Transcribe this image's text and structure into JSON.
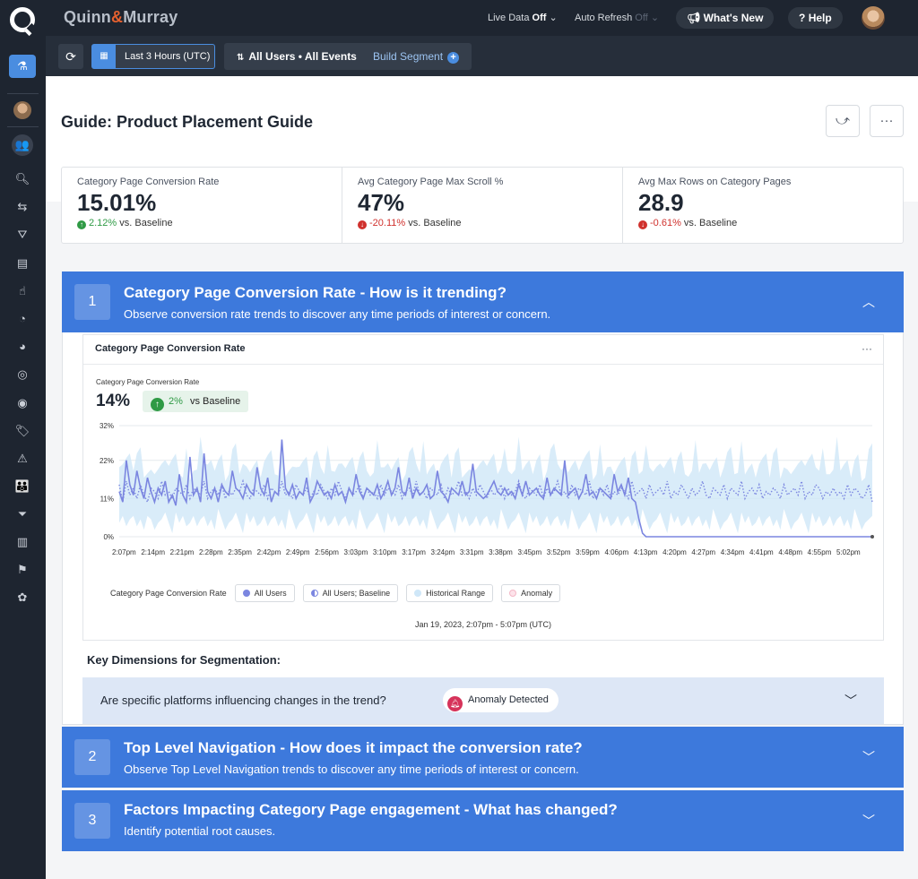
{
  "topbar": {
    "brand_left": "Quinn",
    "brand_amp": "&",
    "brand_right": "Murray",
    "live_data_label": "Live Data",
    "live_data_value": "Off",
    "auto_refresh_label": "Auto Refresh",
    "auto_refresh_value": "Off",
    "whats_new": "What's New",
    "help": "Help"
  },
  "toolbar": {
    "date_range": "Last 3 Hours (UTC)",
    "segment": "All Users • All Events",
    "build_segment": "Build Segment"
  },
  "page": {
    "title": "Guide: Product Placement Guide"
  },
  "kpis": [
    {
      "label": "Category Page Conversion Rate",
      "value": "15.01%",
      "delta": "2.12%",
      "suffix": "vs. Baseline",
      "direction": "up"
    },
    {
      "label": "Avg Category Page Max Scroll %",
      "value": "47%",
      "delta": "-20.11%",
      "suffix": "vs. Baseline",
      "direction": "down"
    },
    {
      "label": "Avg Max Rows on Category Pages",
      "value": "28.9",
      "delta": "-0.61%",
      "suffix": "vs. Baseline",
      "direction": "down"
    }
  ],
  "sections": [
    {
      "num": "1",
      "title": "Category Page Conversion Rate - How is it trending?",
      "subtitle": "Observe conversion rate trends to discover any time periods of interest or concern.",
      "expanded": true
    },
    {
      "num": "2",
      "title": "Top Level Navigation - How does it impact the conversion rate?",
      "subtitle": "Observe Top Level Navigation trends to discover any time periods of interest or concern.",
      "expanded": false
    },
    {
      "num": "3",
      "title": "Factors Impacting Category Page engagement - What has changed?",
      "subtitle": "Identify potential root causes.",
      "expanded": false
    }
  ],
  "chart_card": {
    "header": "Category Page Conversion Rate",
    "metric_label": "Category Page Conversion Rate",
    "metric_value": "14%",
    "badge_value": "2%",
    "badge_suffix": "vs Baseline",
    "date_caption": "Jan 19, 2023, 2:07pm - 5:07pm (UTC)",
    "legend_title": "Category Page Conversion Rate",
    "legend": [
      "All Users",
      "All Users; Baseline",
      "Historical Range",
      "Anomaly"
    ]
  },
  "key_dimensions": {
    "title": "Key Dimensions for Segmentation:",
    "question": "Are specific platforms influencing changes in the trend?",
    "anomaly": "Anomaly Detected"
  },
  "colors": {
    "accent": "#3d79dc",
    "nav_bg": "#1e2530",
    "up": "#2f9a45",
    "down": "#d0312d",
    "series": "#7b86e0",
    "range": "#cfe7f8"
  },
  "chart_data": {
    "type": "line",
    "y_ticks": [
      "0%",
      "11%",
      "22%",
      "32%"
    ],
    "ylim": [
      0,
      32
    ],
    "x_tick_labels": [
      "2:07pm",
      "2:14pm",
      "2:21pm",
      "2:28pm",
      "2:35pm",
      "2:42pm",
      "2:49pm",
      "2:56pm",
      "3:03pm",
      "3:10pm",
      "3:17pm",
      "3:24pm",
      "3:31pm",
      "3:38pm",
      "3:45pm",
      "3:52pm",
      "3:59pm",
      "4:06pm",
      "4:13pm",
      "4:20pm",
      "4:27pm",
      "4:34pm",
      "4:41pm",
      "4:48pm",
      "4:55pm",
      "5:02pm"
    ],
    "series": [
      {
        "name": "All Users",
        "values": [
          13,
          10,
          22,
          15,
          12,
          19,
          14,
          11,
          17,
          13,
          10,
          14,
          12,
          16,
          10,
          12,
          9,
          18,
          12,
          10,
          23,
          12,
          14,
          10,
          24,
          13,
          11,
          14,
          10,
          15,
          13,
          12,
          19,
          14,
          13,
          11,
          15,
          13,
          12,
          20,
          14,
          12,
          17,
          10,
          13,
          12,
          28,
          14,
          12,
          15,
          11,
          13,
          12,
          17,
          10,
          12,
          16,
          14,
          12,
          13,
          11,
          15,
          12,
          13,
          10,
          14,
          12,
          18,
          13,
          11,
          14,
          13,
          12,
          15,
          11,
          13,
          16,
          12,
          14,
          20,
          13,
          12,
          17,
          11,
          14,
          12,
          13,
          15,
          11,
          12,
          19,
          13,
          12,
          10,
          14,
          13,
          12,
          16,
          12,
          13,
          21,
          13,
          12,
          11,
          12,
          14,
          16,
          13,
          12,
          14,
          12,
          13,
          11,
          15,
          12,
          16,
          12,
          13,
          14,
          12,
          11,
          17,
          12,
          14,
          13,
          12,
          22,
          12,
          13,
          14,
          11,
          13,
          18,
          12,
          13,
          11,
          14,
          13,
          12,
          11,
          18,
          13,
          15,
          12,
          17,
          11,
          10,
          5,
          1,
          0,
          0,
          0,
          0,
          0,
          0,
          0,
          0,
          0,
          0,
          0,
          0,
          0,
          0,
          0,
          0,
          0,
          0,
          0,
          0,
          0,
          0,
          0,
          0,
          0,
          0,
          0,
          0,
          0,
          0,
          0,
          0,
          0,
          0,
          0,
          0,
          0,
          0,
          0,
          0,
          0,
          0,
          0,
          0,
          0,
          0,
          0,
          0,
          0,
          0,
          0,
          0,
          0,
          0,
          0,
          0,
          0,
          0,
          0,
          0,
          0,
          0,
          0,
          0,
          0
        ]
      },
      {
        "name": "All Users; Baseline",
        "values": [
          15,
          10,
          16,
          12,
          14,
          11,
          15,
          12,
          10,
          14,
          13,
          11,
          16,
          12,
          13,
          11,
          14,
          13,
          12,
          15,
          11,
          14,
          13,
          12,
          16,
          11,
          13,
          14,
          12,
          15,
          11,
          13,
          12,
          14,
          13,
          16,
          12,
          11,
          14,
          13,
          12,
          15,
          11,
          14,
          13,
          12,
          16,
          12,
          13,
          11,
          15,
          13,
          12,
          14,
          11,
          13,
          12,
          15,
          13,
          11,
          14,
          12,
          16,
          13,
          11,
          14,
          12,
          13,
          15,
          11,
          14,
          12,
          13,
          11,
          15,
          12,
          14,
          13,
          12,
          15,
          11,
          13,
          14,
          12,
          16,
          12,
          13,
          11,
          14,
          13,
          12,
          15,
          11,
          14,
          12,
          13,
          16,
          12,
          13,
          11,
          14,
          12,
          15,
          13,
          11,
          14,
          12,
          13,
          15,
          11,
          14,
          12,
          13,
          16,
          12,
          11,
          14,
          13,
          12,
          15,
          11,
          14,
          12,
          13,
          16,
          12,
          13,
          11,
          15,
          12,
          14,
          13,
          12,
          16,
          11,
          13,
          14,
          12,
          15,
          11,
          13,
          12,
          14,
          13,
          11,
          16,
          12,
          13,
          14,
          11,
          15,
          12,
          13,
          14,
          12,
          16,
          11,
          13,
          12,
          15,
          13,
          11,
          14,
          12,
          13,
          16,
          12,
          11,
          14,
          13,
          12,
          15,
          11,
          14,
          13,
          12,
          16,
          11,
          13,
          14,
          12,
          15,
          11,
          13,
          12,
          14,
          13,
          11,
          15,
          12,
          13,
          14,
          12,
          16,
          11,
          13,
          12,
          15,
          14,
          11,
          13,
          12,
          14,
          12,
          13,
          11,
          15,
          12,
          14,
          13,
          11,
          12
        ]
      }
    ],
    "historical_range": {
      "low": 4,
      "high": 26
    }
  }
}
